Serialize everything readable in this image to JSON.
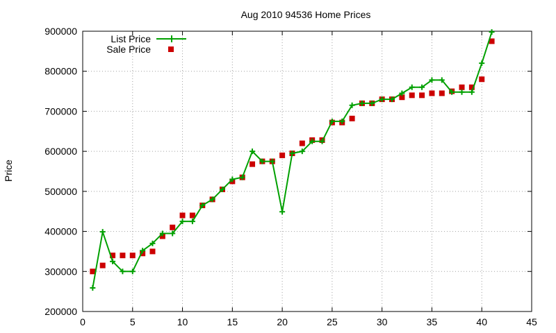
{
  "chart_data": {
    "type": "line",
    "title": "Aug 2010 94536 Home Prices",
    "xlabel": "",
    "ylabel": "Price",
    "xlim": [
      0,
      45
    ],
    "ylim": [
      200000,
      900000
    ],
    "xticks": [
      0,
      5,
      10,
      15,
      20,
      25,
      30,
      35,
      40,
      45
    ],
    "yticks": [
      200000,
      300000,
      400000,
      500000,
      600000,
      700000,
      800000,
      900000
    ],
    "grid": true,
    "legend_position": "top-left",
    "series": [
      {
        "name": "List Price",
        "style": "line-plus",
        "color": "#00a000",
        "x": [
          1,
          2,
          3,
          4,
          5,
          6,
          7,
          8,
          9,
          10,
          11,
          12,
          13,
          14,
          15,
          16,
          17,
          18,
          19,
          20,
          21,
          22,
          23,
          24,
          25,
          26,
          27,
          28,
          29,
          30,
          31,
          32,
          33,
          34,
          35,
          36,
          37,
          38,
          39,
          40,
          41
        ],
        "values": [
          259000,
          399000,
          325000,
          300000,
          300000,
          352000,
          370000,
          395000,
          395000,
          425000,
          425000,
          465000,
          480000,
          505000,
          530000,
          535000,
          600000,
          575000,
          575000,
          449000,
          595000,
          600000,
          625000,
          625000,
          675000,
          675000,
          715000,
          720000,
          720000,
          730000,
          730000,
          745000,
          760000,
          760000,
          778000,
          778000,
          748000,
          748000,
          748000,
          820000,
          898000
        ]
      },
      {
        "name": "Sale Price",
        "style": "square-marker",
        "color": "#cc0000",
        "x": [
          1,
          2,
          3,
          4,
          5,
          6,
          7,
          8,
          9,
          10,
          11,
          12,
          13,
          14,
          15,
          16,
          17,
          18,
          19,
          20,
          21,
          22,
          23,
          24,
          25,
          26,
          27,
          28,
          29,
          30,
          31,
          32,
          33,
          34,
          35,
          36,
          37,
          38,
          39,
          40,
          41
        ],
        "values": [
          300000,
          315000,
          340000,
          340000,
          340000,
          345000,
          350000,
          388000,
          410000,
          440000,
          440000,
          465000,
          480000,
          505000,
          525000,
          535000,
          568000,
          575000,
          575000,
          590000,
          595000,
          620000,
          628000,
          628000,
          672000,
          672000,
          682000,
          720000,
          720000,
          730000,
          730000,
          735000,
          740000,
          740000,
          745000,
          745000,
          750000,
          760000,
          760000,
          780000,
          875000
        ]
      }
    ]
  }
}
